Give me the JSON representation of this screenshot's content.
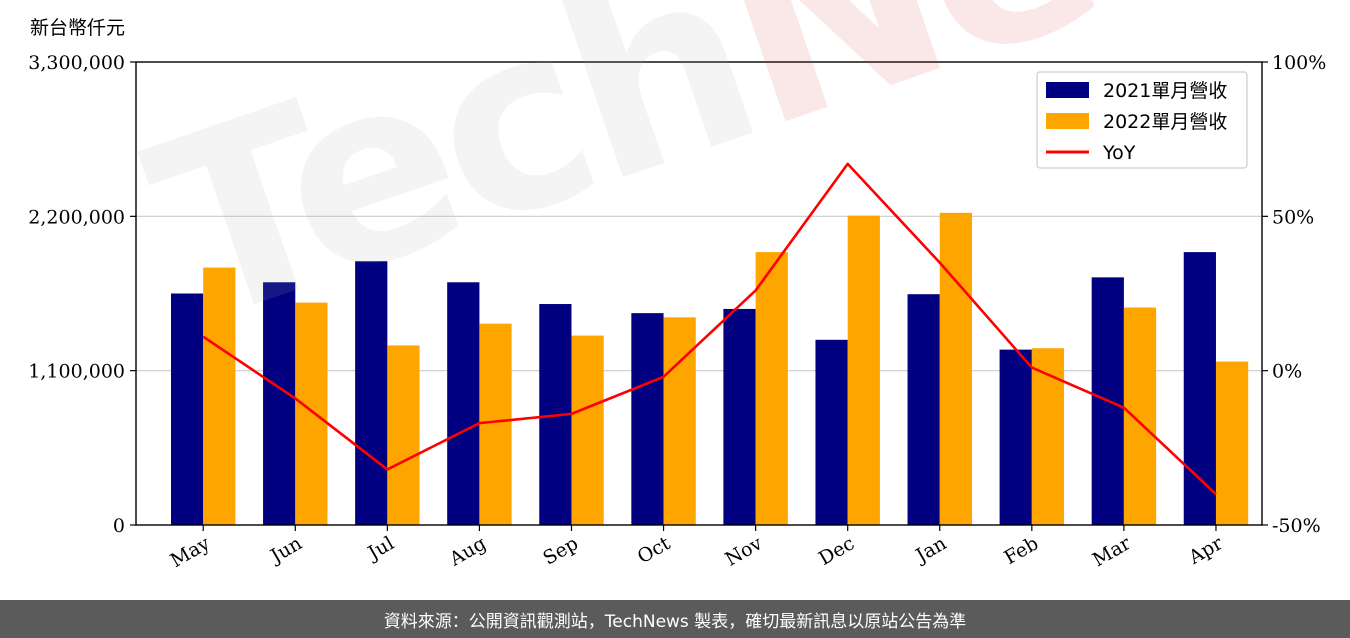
{
  "watermark": {
    "part1": "Tech",
    "part2": "News"
  },
  "footer": {
    "text": "資料來源：公開資訊觀測站，TechNews 製表，確切最新訊息以原站公告為準"
  },
  "colors": {
    "bar2021": "#000080",
    "bar2022": "#FFA500",
    "yoy": "#FF0000",
    "grid": "#cccccc",
    "footer_bg": "#5b5b5b"
  },
  "chart_data": {
    "type": "bar",
    "unit_label": "新台幣仟元",
    "categories": [
      "May",
      "Jun",
      "Jul",
      "Aug",
      "Sep",
      "Oct",
      "Nov",
      "Dec",
      "Jan",
      "Feb",
      "Mar",
      "Apr"
    ],
    "series": [
      {
        "name": "2021單月營收",
        "type": "bar",
        "axis": "left",
        "values": [
          1650000,
          1730000,
          1880000,
          1730000,
          1575000,
          1510000,
          1540000,
          1320000,
          1645000,
          1250000,
          1765000,
          1945000
        ]
      },
      {
        "name": "2022單月營收",
        "type": "bar",
        "axis": "left",
        "values": [
          1835000,
          1585000,
          1280000,
          1435000,
          1350000,
          1480000,
          1945000,
          2205000,
          2225000,
          1260000,
          1550000,
          1165000
        ]
      },
      {
        "name": "YoY",
        "type": "line",
        "axis": "right",
        "values": [
          11,
          -9,
          -32,
          -17,
          -14,
          -2,
          26,
          67,
          35,
          1,
          -12,
          -40
        ]
      }
    ],
    "left_axis": {
      "ylim": [
        0,
        3300000
      ],
      "ticks": [
        0,
        1100000,
        2200000,
        3300000
      ],
      "tick_labels": [
        "0",
        "1,100,000",
        "2,200,000",
        "3,300,000"
      ]
    },
    "right_axis": {
      "ylim": [
        -50,
        100
      ],
      "ticks": [
        -50,
        0,
        50,
        100
      ],
      "tick_labels": [
        "-50%",
        "0%",
        "50%",
        "100%"
      ]
    },
    "grid": "horizontal",
    "legend_position": "top-right"
  }
}
